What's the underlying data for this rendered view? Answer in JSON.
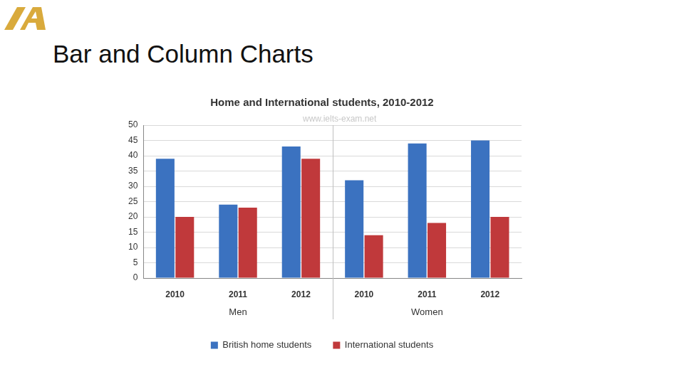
{
  "heading": "Bar and Column Charts",
  "chart_data": {
    "type": "bar",
    "title": "Home and International students, 2010-2012",
    "annotations": [
      "www.ielts-exam.net"
    ],
    "categories": [
      "2010",
      "2011",
      "2012",
      "2010",
      "2011",
      "2012"
    ],
    "category_groups": [
      "Men",
      "Women"
    ],
    "series": [
      {
        "name": "British home students",
        "color": "#3b72c0",
        "values": [
          39,
          24,
          43,
          32,
          44,
          45
        ]
      },
      {
        "name": "International students",
        "color": "#c0393b",
        "values": [
          20,
          23,
          39,
          14,
          18,
          20
        ]
      }
    ],
    "ylim": [
      0,
      50
    ],
    "yticks": [
      0,
      5,
      10,
      15,
      20,
      25,
      30,
      35,
      40,
      45,
      50
    ],
    "grid": true,
    "legend": "bottom"
  }
}
